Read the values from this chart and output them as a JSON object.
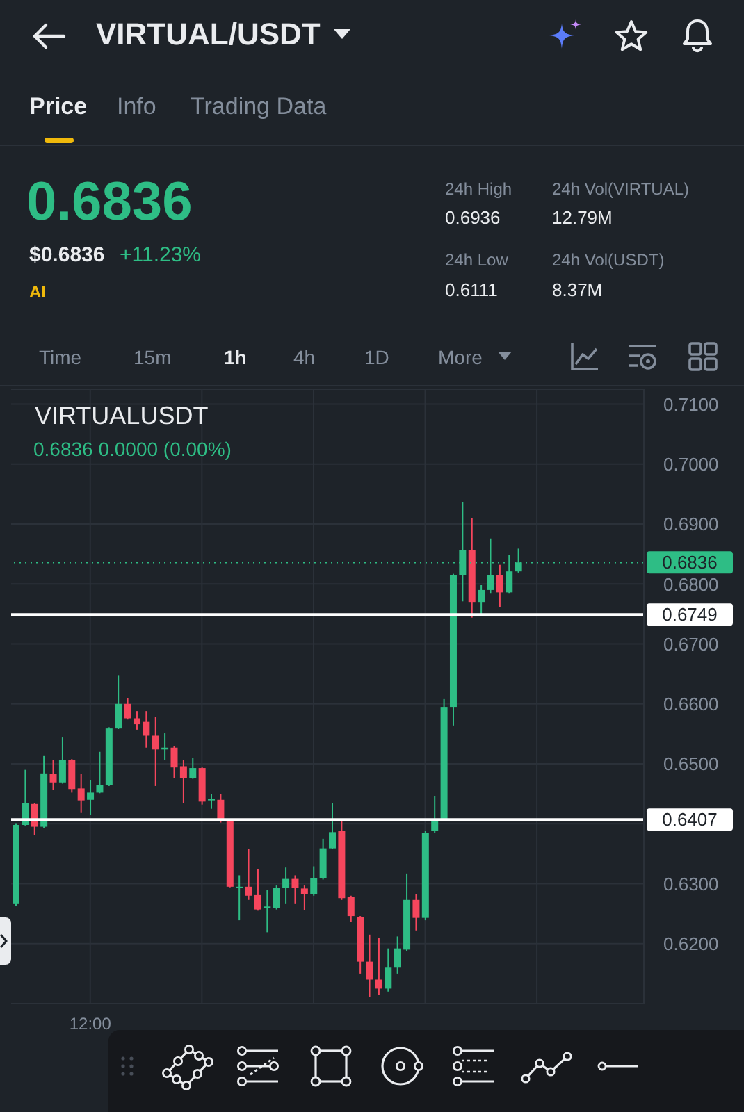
{
  "chart_data": {
    "type": "candlestick",
    "title": "VIRTUAL/USDT",
    "subtitle": "VIRTUALUSDT",
    "categories": [
      null,
      null,
      null,
      null,
      null,
      null,
      null,
      null,
      "12:00",
      null,
      null,
      null,
      null,
      null,
      null,
      null,
      null,
      null,
      null,
      null,
      null,
      null,
      null,
      null,
      null,
      null,
      null,
      null,
      null,
      null,
      null,
      null,
      null,
      null,
      null,
      null,
      null,
      null,
      null,
      null,
      null,
      null,
      null,
      null,
      null,
      null,
      null,
      null,
      null,
      null,
      null,
      null,
      null,
      null,
      null,
      null,
      null,
      null,
      null,
      null,
      null,
      null,
      null,
      null,
      null,
      null,
      null,
      null
    ],
    "ohlc": [
      [
        0.6266,
        0.6401,
        0.6263,
        0.6398
      ],
      [
        0.6398,
        0.649,
        0.6397,
        0.6435
      ],
      [
        0.6433,
        0.6435,
        0.6381,
        0.6395
      ],
      [
        0.6395,
        0.6513,
        0.6393,
        0.6484
      ],
      [
        0.6483,
        0.6507,
        0.6456,
        0.6469
      ],
      [
        0.6469,
        0.6544,
        0.6467,
        0.6507
      ],
      [
        0.6507,
        0.6508,
        0.6452,
        0.6458
      ],
      [
        0.6459,
        0.6483,
        0.6418,
        0.6439
      ],
      [
        0.644,
        0.6473,
        0.6415,
        0.6452
      ],
      [
        0.6452,
        0.652,
        0.6451,
        0.6465
      ],
      [
        0.6465,
        0.6561,
        0.6463,
        0.6559
      ],
      [
        0.6559,
        0.6648,
        0.6558,
        0.66
      ],
      [
        0.66,
        0.661,
        0.6574,
        0.6576
      ],
      [
        0.6576,
        0.6588,
        0.6557,
        0.6566
      ],
      [
        0.657,
        0.6588,
        0.6527,
        0.6547
      ],
      [
        0.6547,
        0.6578,
        0.6463,
        0.6524
      ],
      [
        0.6524,
        0.6551,
        0.6507,
        0.6527
      ],
      [
        0.6527,
        0.653,
        0.6476,
        0.6494
      ],
      [
        0.6496,
        0.6507,
        0.6435,
        0.6476
      ],
      [
        0.6476,
        0.651,
        0.6475,
        0.6493
      ],
      [
        0.6493,
        0.6494,
        0.6432,
        0.6437
      ],
      [
        0.6439,
        0.6449,
        0.6425,
        0.6442
      ],
      [
        0.644,
        0.6449,
        0.6402,
        0.6405
      ],
      [
        0.6405,
        0.6406,
        0.6294,
        0.6295
      ],
      [
        0.6293,
        0.6314,
        0.6239,
        0.6295
      ],
      [
        0.6295,
        0.6358,
        0.6273,
        0.628
      ],
      [
        0.6281,
        0.6324,
        0.6255,
        0.6257
      ],
      [
        0.6259,
        0.6289,
        0.6219,
        0.6262
      ],
      [
        0.626,
        0.6297,
        0.6257,
        0.6293
      ],
      [
        0.6293,
        0.6327,
        0.6266,
        0.6308
      ],
      [
        0.6308,
        0.6314,
        0.6266,
        0.6293
      ],
      [
        0.6292,
        0.6297,
        0.6256,
        0.6283
      ],
      [
        0.6283,
        0.6329,
        0.628,
        0.6309
      ],
      [
        0.6309,
        0.6375,
        0.6307,
        0.6359
      ],
      [
        0.6359,
        0.6434,
        0.6358,
        0.6386
      ],
      [
        0.6388,
        0.6405,
        0.6273,
        0.6276
      ],
      [
        0.6278,
        0.628,
        0.6236,
        0.6246
      ],
      [
        0.6244,
        0.6246,
        0.615,
        0.617
      ],
      [
        0.617,
        0.6215,
        0.6111,
        0.614
      ],
      [
        0.614,
        0.6209,
        0.6115,
        0.6125
      ],
      [
        0.6125,
        0.6192,
        0.612,
        0.616
      ],
      [
        0.616,
        0.6212,
        0.615,
        0.6192
      ],
      [
        0.619,
        0.6317,
        0.6188,
        0.6273
      ],
      [
        0.6273,
        0.6283,
        0.6222,
        0.6243
      ],
      [
        0.6243,
        0.6388,
        0.6239,
        0.6385
      ],
      [
        0.6388,
        0.6446,
        0.6385,
        0.6408
      ],
      [
        0.6408,
        0.6608,
        0.6405,
        0.6595
      ],
      [
        0.6595,
        0.6817,
        0.6564,
        0.6815
      ],
      [
        0.6815,
        0.6936,
        0.6771,
        0.6856
      ],
      [
        0.6857,
        0.691,
        0.6744,
        0.677
      ],
      [
        0.677,
        0.6798,
        0.6747,
        0.679
      ],
      [
        0.679,
        0.6876,
        0.6785,
        0.6815
      ],
      [
        0.6815,
        0.6832,
        0.6761,
        0.6786
      ],
      [
        0.6786,
        0.6849,
        0.6785,
        0.6821
      ],
      [
        0.6821,
        0.6859,
        0.6819,
        0.6836
      ],
      null,
      null,
      null,
      null,
      null,
      null,
      null,
      null,
      null,
      null,
      null,
      null,
      null
    ],
    "colors": [
      "#2ebd85",
      "#2ebd85",
      "#f6465d",
      "#2ebd85",
      "#f6465d",
      "#2ebd85",
      "#f6465d",
      "#f6465d",
      "#2ebd85",
      "#2ebd85",
      "#2ebd85",
      "#2ebd85",
      "#f6465d",
      "#f6465d",
      "#f6465d",
      "#f6465d",
      "#2ebd85",
      "#f6465d",
      "#f6465d",
      "#2ebd85",
      "#f6465d",
      "#2ebd85",
      "#f6465d",
      "#f6465d",
      "#2ebd85",
      "#f6465d",
      "#f6465d",
      "#2ebd85",
      "#2ebd85",
      "#2ebd85",
      "#f6465d",
      "#f6465d",
      "#2ebd85",
      "#2ebd85",
      "#2ebd85",
      "#f6465d",
      "#f6465d",
      "#f6465d",
      "#f6465d",
      "#f6465d",
      "#2ebd85",
      "#2ebd85",
      "#2ebd85",
      "#f6465d",
      "#2ebd85",
      "#2ebd85",
      "#2ebd85",
      "#2ebd85",
      "#2ebd85",
      "#f6465d",
      "#2ebd85",
      "#2ebd85",
      "#f6465d",
      "#2ebd85",
      "#2ebd85",
      null,
      null,
      null,
      null,
      null,
      null,
      null,
      null,
      null,
      null,
      null,
      null,
      null
    ],
    "ylim": [
      0.61,
      0.7125
    ],
    "yticks": [
      {
        "value": 0.62,
        "label": "0.6200"
      },
      {
        "value": 0.63,
        "label": "0.6300"
      },
      {
        "value": 0.64,
        "label": null
      },
      {
        "value": 0.65,
        "label": "0.6500"
      },
      {
        "value": 0.66,
        "label": "0.6600"
      },
      {
        "value": 0.67,
        "label": "0.6700"
      },
      {
        "value": 0.68,
        "label": "0.6800"
      },
      {
        "value": 0.69,
        "label": "0.6900"
      },
      {
        "value": 0.7,
        "label": "0.7000"
      },
      {
        "value": 0.71,
        "label": "0.7100"
      }
    ],
    "grid": true,
    "ref_lines": [
      {
        "axis": "y",
        "value": 0.6836,
        "label": "0.6836",
        "color": "#2ebd85",
        "line_style": "dotted"
      },
      {
        "axis": "y",
        "value": 0.6749,
        "label": "0.6749",
        "color": "#ffffff",
        "line_style": "solid"
      },
      {
        "axis": "y",
        "value": 0.6407,
        "label": "0.6407",
        "color": "#ffffff",
        "line_style": "solid"
      }
    ],
    "annotations": [
      "Price",
      "Info",
      "Trading Data",
      "0.6836",
      "$0.6836",
      "+11.23%",
      "AI",
      "24h High",
      "0.6936",
      "24h Vol(VIRTUAL)",
      "12.79M",
      "24h Low",
      "0.6111",
      "24h Vol(USDT)",
      "8.37M",
      "Time",
      "15m",
      "1h",
      "4h",
      "1D",
      "More",
      "0.6836  0.0000 (0.00%)"
    ]
  }
}
